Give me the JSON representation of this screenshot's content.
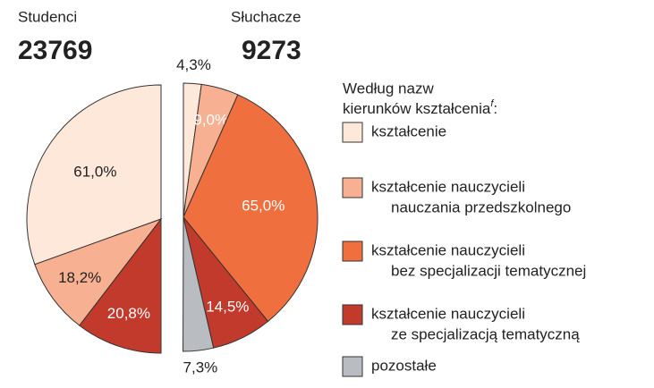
{
  "chart_data": {
    "type": "pie",
    "categories": [
      [
        "kształcenie"
      ],
      [
        "kształcenie nauczycieli",
        "nauczania przedszkolnego"
      ],
      [
        "kształcenie nauczycieli",
        "bez specjalizacji tematycznej"
      ],
      [
        "kształcenie nauczycieli",
        "ze specjalizacją tematyczną"
      ],
      [
        "pozostałe"
      ]
    ],
    "colors": [
      "#fde8da",
      "#f7b192",
      "#ef6f3e",
      "#c23a2c",
      "#b9bcc1"
    ],
    "legend_title": [
      "Według nazw",
      "kierunków kształcenia"
    ],
    "legend_note": "f",
    "legend_title_end": ":",
    "pies": [
      {
        "title": "Studenci",
        "total": 23769,
        "side": "left",
        "values": [
          61.0,
          18.2,
          null,
          20.8,
          null
        ],
        "value_labels": [
          "61,0%",
          "18,2%",
          null,
          "20,8%",
          null
        ]
      },
      {
        "title": "Słuchacze",
        "total": 9273,
        "side": "right",
        "values": [
          4.3,
          9.0,
          65.0,
          14.5,
          7.3
        ],
        "value_labels": [
          "4,3%",
          "9,0%",
          "65,0%",
          "14,5%",
          "7,3%"
        ]
      }
    ]
  }
}
